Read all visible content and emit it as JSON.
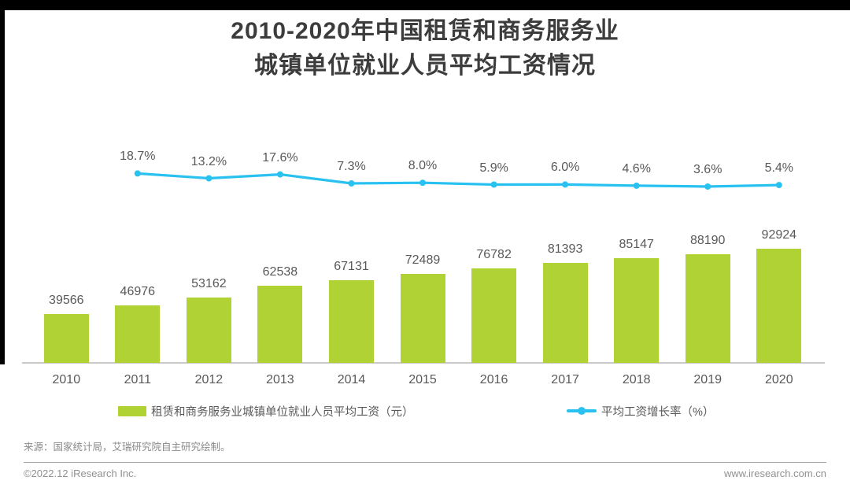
{
  "title": {
    "line1": "2010-2020年中国租赁和商务服务业",
    "line2": "城镇单位就业人员平均工资情况"
  },
  "chart_data": {
    "type": "bar+line",
    "categories": [
      "2010",
      "2011",
      "2012",
      "2013",
      "2014",
      "2015",
      "2016",
      "2017",
      "2018",
      "2019",
      "2020"
    ],
    "bar_series": {
      "name": "租赁和商务服务业城镇单位就业人员平均工资（元）",
      "values": [
        39566,
        46976,
        53162,
        62538,
        67131,
        72489,
        76782,
        81393,
        85147,
        88190,
        92924
      ],
      "color": "#B1D235"
    },
    "line_series": {
      "name": "平均工资增长率（%）",
      "start_category": "2011",
      "values": [
        18.7,
        13.2,
        17.6,
        7.3,
        8.0,
        5.9,
        6.0,
        4.6,
        3.6,
        5.4
      ],
      "labels": [
        "18.7%",
        "13.2%",
        "17.6%",
        "7.3%",
        "8.0%",
        "5.9%",
        "6.0%",
        "4.6%",
        "3.6%",
        "5.4%"
      ],
      "color": "#29C1F0"
    },
    "ylabel": "",
    "xlabel": "",
    "grid": false,
    "legend_position": "bottom"
  },
  "legend": [
    {
      "label": "租赁和商务服务业城镇单位就业人员平均工资（元）",
      "color": "#B1D235",
      "type": "bar"
    },
    {
      "label": "平均工资增长率（%）",
      "color": "#29C1F0",
      "type": "line"
    }
  ],
  "footer": {
    "source": "来源：国家统计局，艾瑞研究院自主研究绘制。",
    "copyright": "©2022.12 iResearch Inc.",
    "website": "www.iresearch.com.cn"
  },
  "colors": {
    "bar": "#B1D235",
    "line": "#29C1F0",
    "title": "#3c3c3c",
    "label": "#595959"
  }
}
